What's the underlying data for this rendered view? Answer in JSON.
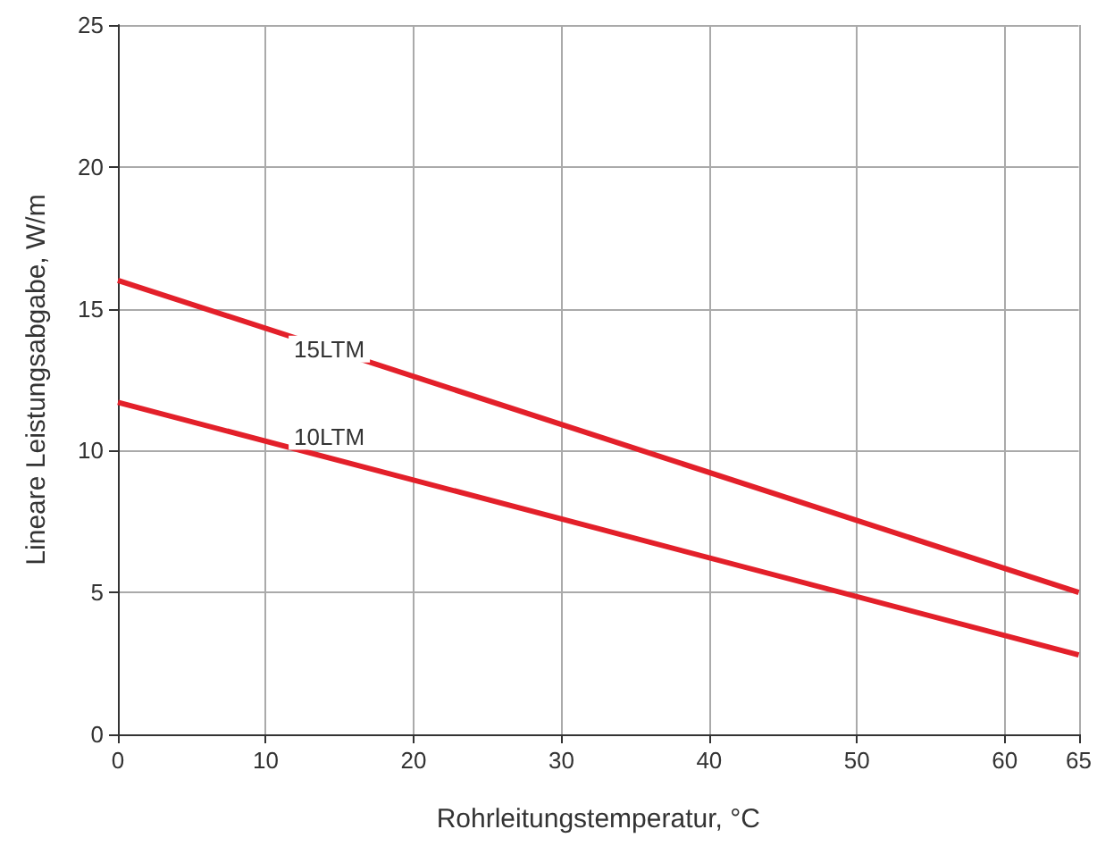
{
  "chart_data": {
    "type": "line",
    "xlabel": "Rohrleitungstemperatur, °C",
    "ylabel": "Lineare Leistungsabgabe, W/m",
    "x": [
      0,
      65
    ],
    "series": [
      {
        "name": "15LTM",
        "color": "#e3202a",
        "values": [
          16,
          5
        ]
      },
      {
        "name": "10LTM",
        "color": "#e3202a",
        "values": [
          11.7,
          2.8
        ]
      }
    ],
    "xlim": [
      0,
      65
    ],
    "xticks": [
      0,
      10,
      20,
      30,
      40,
      50,
      60,
      65
    ],
    "ylim": [
      0,
      25
    ],
    "yticks": [
      0,
      5,
      10,
      15,
      20,
      25
    ],
    "grid": true,
    "legend": false,
    "marker": "none",
    "line_style": "solid"
  }
}
